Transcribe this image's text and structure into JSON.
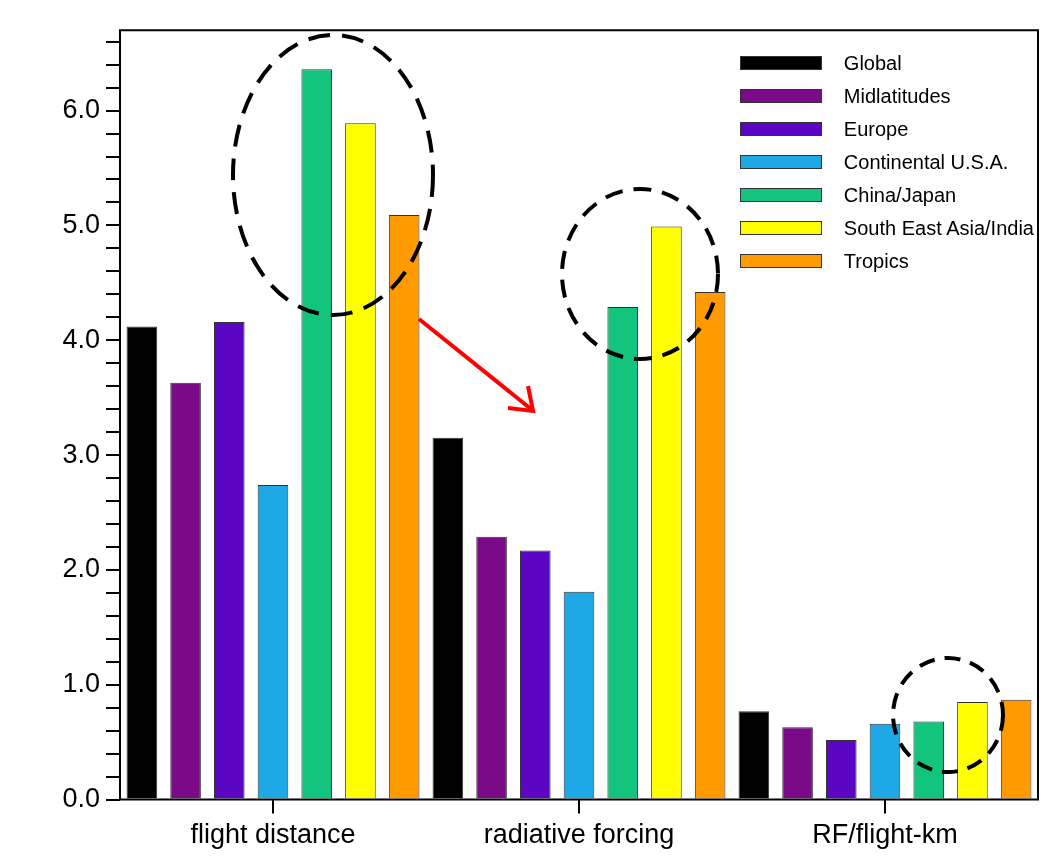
{
  "chart_data": {
    "type": "bar",
    "categories": [
      "flight distance",
      "radiative forcing",
      "RF/flight-km"
    ],
    "series": [
      {
        "name": "Global",
        "color": "#000000",
        "values": [
          4.12,
          3.15,
          0.77
        ]
      },
      {
        "name": "Midlatitudes",
        "color": "#7a0a88",
        "values": [
          3.63,
          2.29,
          0.63
        ]
      },
      {
        "name": "Europe",
        "color": "#5a06c2",
        "values": [
          4.16,
          2.17,
          0.52
        ]
      },
      {
        "name": "Continental U.S.A.",
        "color": "#1ea8e6",
        "values": [
          2.74,
          1.81,
          0.66
        ]
      },
      {
        "name": "China/Japan",
        "color": "#12c47c",
        "values": [
          6.36,
          4.29,
          0.68
        ]
      },
      {
        "name": "South East Asia/India",
        "color": "#ffff00",
        "values": [
          5.89,
          4.99,
          0.85
        ]
      },
      {
        "name": "Tropics",
        "color": "#ff9a00",
        "values": [
          5.09,
          4.42,
          0.87
        ]
      }
    ],
    "ylim": [
      0,
      6.7
    ],
    "yticks": [
      {
        "value": 0,
        "label": "0.0"
      },
      {
        "value": 0.2,
        "label": null
      },
      {
        "value": 0.4,
        "label": null
      },
      {
        "value": 0.6,
        "label": null
      },
      {
        "value": 0.8,
        "label": null
      },
      {
        "value": 1,
        "label": "1.0"
      },
      {
        "value": 1.2,
        "label": null
      },
      {
        "value": 1.4,
        "label": null
      },
      {
        "value": 1.6,
        "label": null
      },
      {
        "value": 1.8,
        "label": null
      },
      {
        "value": 2,
        "label": "2.0"
      },
      {
        "value": 2.2,
        "label": null
      },
      {
        "value": 2.4,
        "label": null
      },
      {
        "value": 2.6,
        "label": null
      },
      {
        "value": 2.8,
        "label": null
      },
      {
        "value": 3,
        "label": "3.0"
      },
      {
        "value": 3.2,
        "label": null
      },
      {
        "value": 3.4,
        "label": null
      },
      {
        "value": 3.6,
        "label": null
      },
      {
        "value": 3.8,
        "label": null
      },
      {
        "value": 4,
        "label": "4.0"
      },
      {
        "value": 4.2,
        "label": null
      },
      {
        "value": 4.4,
        "label": null
      },
      {
        "value": 4.6,
        "label": null
      },
      {
        "value": 4.8,
        "label": null
      },
      {
        "value": 5,
        "label": "5.0"
      },
      {
        "value": 5.2,
        "label": null
      },
      {
        "value": 5.4,
        "label": null
      },
      {
        "value": 5.6,
        "label": null
      },
      {
        "value": 5.8,
        "label": null
      },
      {
        "value": 6,
        "label": "6.0"
      },
      {
        "value": 6.2,
        "label": null
      },
      {
        "value": 6.4,
        "label": null
      },
      {
        "value": 6.6,
        "label": null
      }
    ],
    "grid": false,
    "legend": "top right"
  }
}
